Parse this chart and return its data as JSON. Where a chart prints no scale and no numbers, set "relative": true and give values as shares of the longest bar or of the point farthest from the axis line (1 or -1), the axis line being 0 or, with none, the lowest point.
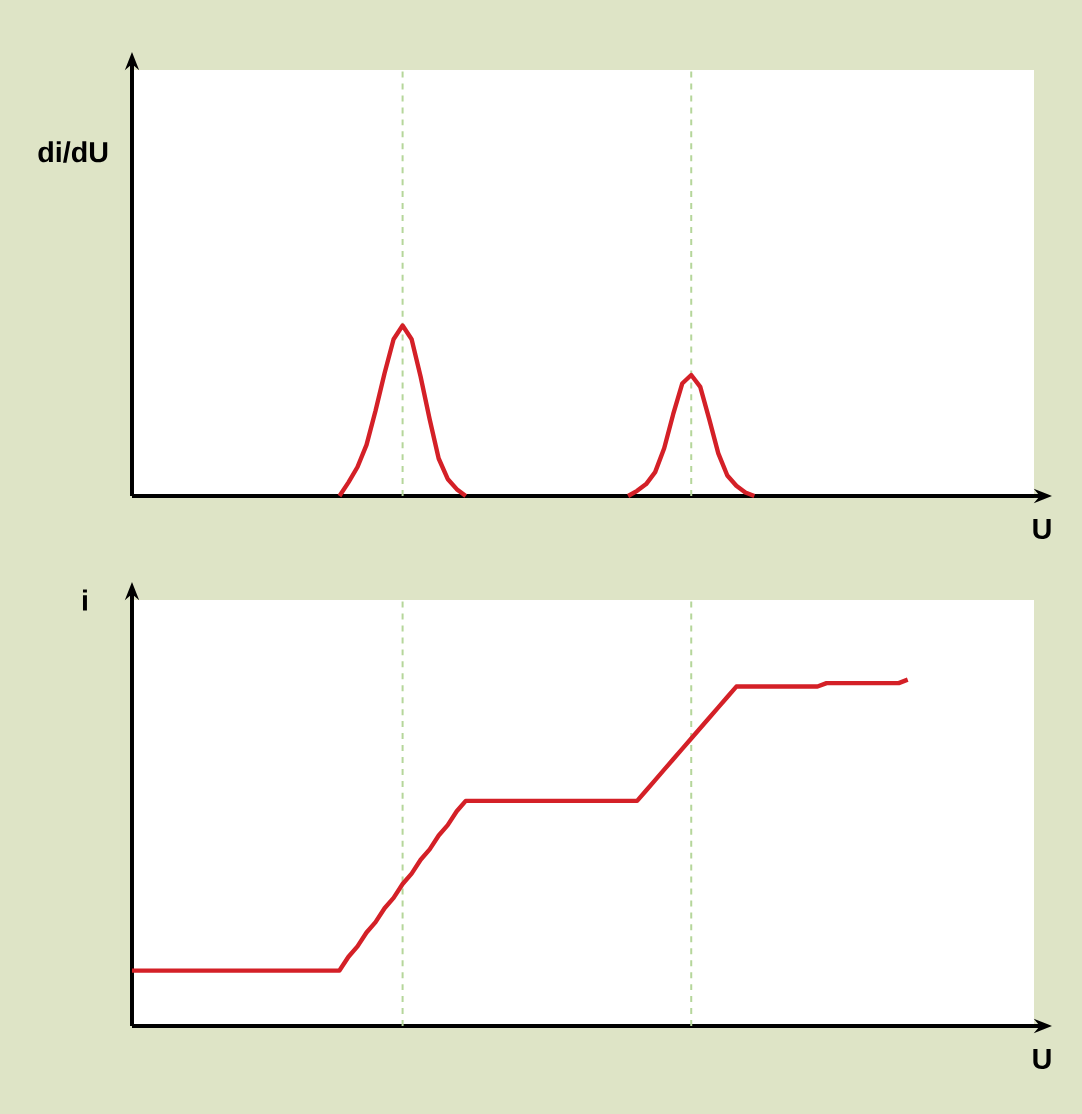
{
  "chart_data": [
    {
      "type": "line",
      "relative": true,
      "ylabel": "di/dU",
      "xlabel": "U",
      "marker": "none",
      "line_style": "solid",
      "categories": [
        null,
        null,
        null,
        null,
        null,
        null,
        null,
        null,
        null,
        null,
        null,
        null,
        null,
        null,
        null,
        null,
        null,
        null,
        null,
        null,
        null,
        null,
        null,
        null,
        null,
        null,
        null,
        null,
        null,
        null,
        null,
        null,
        null,
        null,
        null,
        null,
        null,
        null,
        null,
        null,
        null,
        null,
        null,
        null,
        null,
        null,
        null,
        null,
        null,
        null,
        null,
        null,
        null,
        null,
        null,
        null,
        null,
        null,
        null,
        null,
        null,
        null,
        null,
        null,
        null,
        null,
        null,
        null,
        null,
        null,
        null,
        null,
        null,
        null,
        null,
        null,
        null,
        null,
        null,
        null,
        null,
        null,
        null,
        null,
        null,
        null,
        null,
        null,
        null,
        null,
        null,
        null,
        null,
        null,
        null,
        null,
        null,
        null,
        null,
        null,
        null
      ],
      "series": [
        {
          "color": "#d42027",
          "values": [
            null,
            null,
            null,
            null,
            null,
            null,
            null,
            null,
            null,
            null,
            null,
            null,
            null,
            null,
            null,
            null,
            null,
            null,
            null,
            null,
            null,
            null,
            null,
            0,
            0.08,
            0.17,
            0.3,
            0.5,
            0.72,
            0.92,
            1,
            0.92,
            0.7,
            0.45,
            0.22,
            0.1,
            0.04,
            0,
            null,
            null,
            null,
            null,
            null,
            null,
            null,
            null,
            null,
            null,
            null,
            null,
            null,
            null,
            null,
            null,
            null,
            null,
            null,
            null,
            null,
            null,
            null,
            null,
            null,
            null,
            null,
            null,
            null,
            null,
            null,
            null,
            null,
            null,
            null,
            null,
            null,
            null,
            null,
            null,
            null,
            null,
            null,
            null,
            null,
            null,
            null,
            null,
            null,
            null,
            null,
            null,
            null,
            null,
            null,
            null,
            null,
            null,
            null,
            null,
            null,
            null,
            null
          ]
        },
        {
          "color": "#d42027",
          "values": [
            null,
            null,
            null,
            null,
            null,
            null,
            null,
            null,
            null,
            null,
            null,
            null,
            null,
            null,
            null,
            null,
            null,
            null,
            null,
            null,
            null,
            null,
            null,
            null,
            null,
            null,
            null,
            null,
            null,
            null,
            null,
            null,
            null,
            null,
            null,
            null,
            null,
            null,
            null,
            null,
            null,
            null,
            null,
            null,
            null,
            null,
            null,
            null,
            null,
            null,
            null,
            null,
            null,
            null,
            null,
            0,
            0.03,
            0.07,
            0.14,
            0.28,
            0.48,
            0.66,
            0.71,
            0.64,
            0.45,
            0.25,
            0.12,
            0.06,
            0.02,
            0,
            null,
            null,
            null,
            null,
            null,
            null,
            null,
            null,
            null,
            null,
            null,
            null,
            null,
            null,
            null,
            null,
            null,
            null,
            null,
            null,
            null,
            null,
            null,
            null,
            null,
            null,
            null,
            null,
            null,
            null,
            null
          ]
        }
      ]
    },
    {
      "type": "line",
      "relative": true,
      "ylabel": "i",
      "xlabel": "U",
      "marker": "none",
      "line_style": "solid",
      "categories": [
        null,
        null,
        null,
        null,
        null,
        null,
        null,
        null,
        null,
        null,
        null,
        null,
        null,
        null,
        null,
        null,
        null,
        null,
        null,
        null,
        null,
        null,
        null,
        null,
        null,
        null,
        null,
        null,
        null,
        null,
        null,
        null,
        null,
        null,
        null,
        null,
        null,
        null,
        null,
        null,
        null,
        null,
        null,
        null,
        null,
        null,
        null,
        null,
        null,
        null,
        null,
        null,
        null,
        null,
        null,
        null,
        null,
        null,
        null,
        null,
        null,
        null,
        null,
        null,
        null,
        null,
        null,
        null,
        null,
        null,
        null,
        null,
        null,
        null,
        null,
        null,
        null,
        null,
        null,
        null,
        null,
        null,
        null,
        null,
        null,
        null,
        null,
        null,
        null,
        null,
        null,
        null,
        null,
        null,
        null,
        null,
        null,
        null,
        null,
        null,
        null
      ],
      "series": [
        {
          "color": "#d42027",
          "values": [
            0.16,
            0.16,
            0.16,
            0.16,
            0.16,
            0.16,
            0.16,
            0.16,
            0.16,
            0.16,
            0.16,
            0.16,
            0.16,
            0.16,
            0.16,
            0.16,
            0.16,
            0.16,
            0.16,
            0.16,
            0.16,
            0.16,
            0.16,
            0.16,
            0.2,
            0.23,
            0.27,
            0.3,
            0.34,
            0.37,
            0.41,
            0.44,
            0.48,
            0.51,
            0.55,
            0.58,
            0.62,
            0.65,
            0.65,
            0.65,
            0.65,
            0.65,
            0.65,
            0.65,
            0.65,
            0.65,
            0.65,
            0.65,
            0.65,
            0.65,
            0.65,
            0.65,
            0.65,
            0.65,
            0.65,
            0.65,
            0.65,
            0.68,
            0.71,
            0.74,
            0.77,
            0.8,
            0.83,
            0.86,
            0.89,
            0.92,
            0.95,
            0.98,
            0.98,
            0.98,
            0.98,
            0.98,
            0.98,
            0.98,
            0.98,
            0.98,
            0.98,
            0.99,
            0.99,
            0.99,
            0.99,
            0.99,
            0.99,
            0.99,
            0.99,
            0.99,
            1,
            null,
            null,
            null,
            null,
            null,
            null,
            null,
            null,
            null,
            null,
            null,
            null,
            null,
            null
          ]
        }
      ]
    }
  ]
}
